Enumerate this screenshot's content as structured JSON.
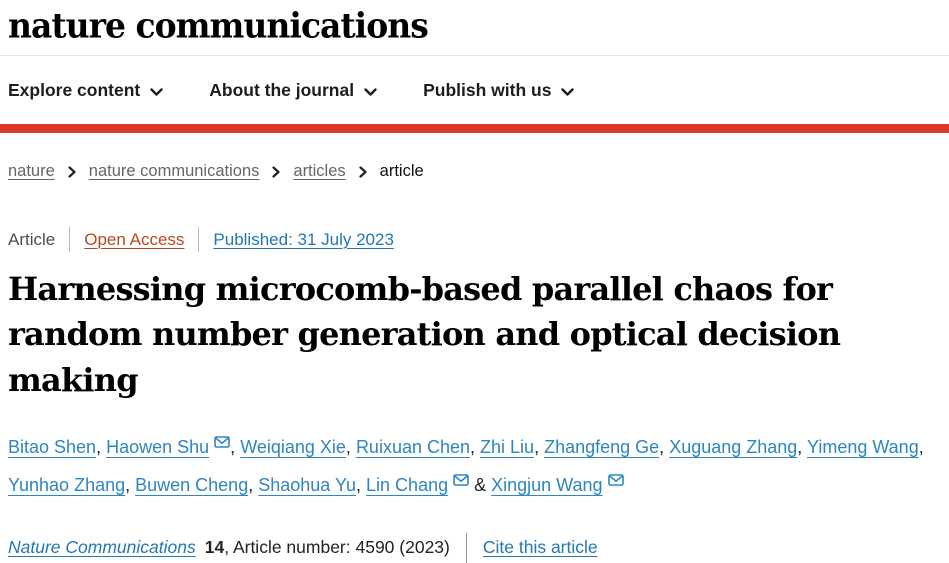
{
  "header": {
    "logo": "nature communications",
    "nav": [
      {
        "label": "Explore content"
      },
      {
        "label": "About the journal"
      },
      {
        "label": "Publish with us"
      }
    ]
  },
  "breadcrumb": {
    "items": [
      {
        "label": "nature"
      },
      {
        "label": "nature communications"
      },
      {
        "label": "articles"
      },
      {
        "label": "article"
      }
    ]
  },
  "article_meta": {
    "type_label": "Article",
    "open_access_label": "Open Access",
    "published_label": "Published: 31 July 2023"
  },
  "title": "Harnessing microcomb-based parallel chaos for random number generation and optical decision making",
  "authors": [
    {
      "name": "Bitao Shen",
      "email": false,
      "sep_before": ""
    },
    {
      "name": "Haowen Shu",
      "email": true,
      "sep_before": ", "
    },
    {
      "name": "Weiqiang Xie",
      "email": false,
      "sep_before": ", "
    },
    {
      "name": "Ruixuan Chen",
      "email": false,
      "sep_before": ", "
    },
    {
      "name": "Zhi Liu",
      "email": false,
      "sep_before": ", "
    },
    {
      "name": "Zhangfeng Ge",
      "email": false,
      "sep_before": ", "
    },
    {
      "name": "Xuguang Zhang",
      "email": false,
      "sep_before": ", "
    },
    {
      "name": "Yimeng Wang",
      "email": false,
      "sep_before": ", "
    },
    {
      "name": "Yunhao Zhang",
      "email": false,
      "sep_before": ", "
    },
    {
      "name": "Buwen Cheng",
      "email": false,
      "sep_before": ", "
    },
    {
      "name": "Shaohua Yu",
      "email": false,
      "sep_before": ", "
    },
    {
      "name": "Lin Chang",
      "email": true,
      "sep_before": ", "
    },
    {
      "name": "Xingjun Wang",
      "email": true,
      "sep_before": " & "
    }
  ],
  "citation": {
    "journal": "Nature Communications",
    "volume": "14",
    "article_info": ", Article number: 4590 (2023)",
    "cite_label": "Cite this article"
  },
  "colors": {
    "brand_red": "#dc3a28",
    "link_blue": "#2277b4",
    "author_blue": "#2d86c1",
    "open_access_orange": "#b5491f",
    "breadcrumb_gray": "#666666"
  }
}
